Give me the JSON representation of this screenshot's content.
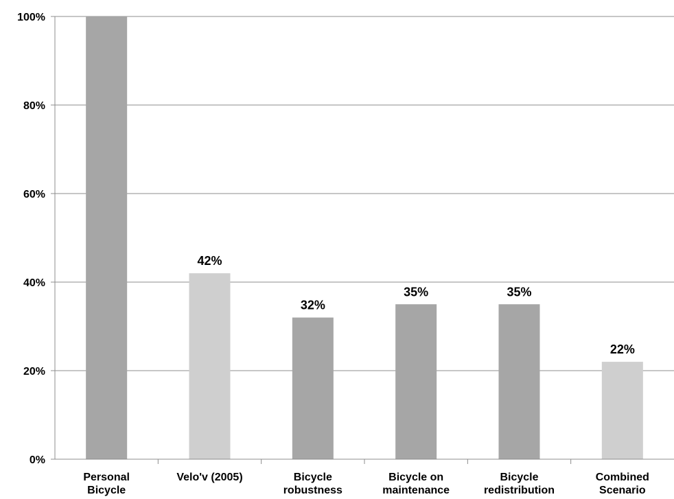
{
  "chart_data": {
    "type": "bar",
    "categories": [
      [
        "Personal",
        "Bicycle"
      ],
      [
        "Velo'v (2005)"
      ],
      [
        "Bicycle",
        "robustness"
      ],
      [
        "Bicycle on",
        "maintenance"
      ],
      [
        "Bicycle",
        "redistribution"
      ],
      [
        "Combined",
        "Scenario"
      ]
    ],
    "values": [
      100,
      42,
      32,
      35,
      35,
      22
    ],
    "data_labels": [
      "",
      "42%",
      "32%",
      "35%",
      "35%",
      "22%"
    ],
    "bar_colors": [
      "#a6a6a6",
      "#cfcfcf",
      "#a6a6a6",
      "#a6a6a6",
      "#a6a6a6",
      "#cfcfcf"
    ],
    "ylim": [
      0,
      100
    ],
    "yticks": [
      0,
      20,
      40,
      60,
      80,
      100
    ],
    "ytick_labels": [
      "0%",
      "20%",
      "40%",
      "60%",
      "80%",
      "100%"
    ],
    "grid": true,
    "title": "",
    "xlabel": "",
    "ylabel": ""
  }
}
